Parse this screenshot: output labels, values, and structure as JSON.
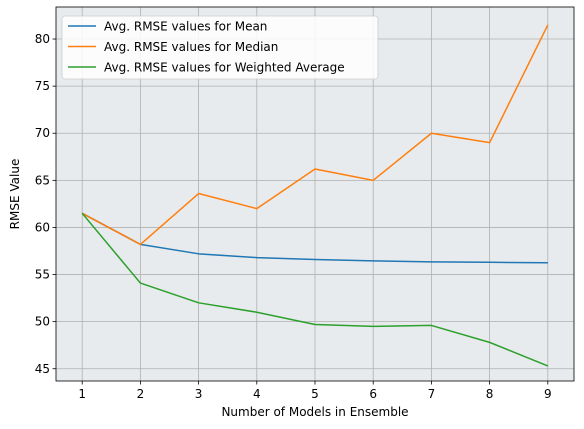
{
  "chart_data": {
    "type": "line",
    "xlabel": "Number of Models in Ensemble",
    "ylabel": "RMSE Value",
    "x": [
      1,
      2,
      3,
      4,
      5,
      6,
      7,
      8,
      9
    ],
    "xlim": [
      0.55,
      9.45
    ],
    "ylim": [
      43.7,
      83.4
    ],
    "xticks": [
      1,
      2,
      3,
      4,
      5,
      6,
      7,
      8,
      9
    ],
    "yticks": [
      45,
      50,
      55,
      60,
      65,
      70,
      75,
      80
    ],
    "grid": true,
    "legend_position": "top-left",
    "plot_background": "#e8ebee",
    "grid_color": "#b0b0b0",
    "series": [
      {
        "name": "Avg. RMSE values for Mean",
        "color": "#1f77b4",
        "values": [
          61.5,
          58.2,
          57.2,
          56.8,
          56.6,
          56.45,
          56.35,
          56.3,
          56.25
        ]
      },
      {
        "name": "Avg. RMSE values for Median",
        "color": "#ff7f0e",
        "values": [
          61.5,
          58.2,
          63.6,
          62.0,
          66.2,
          65.0,
          70.0,
          69.0,
          81.5
        ]
      },
      {
        "name": "Avg. RMSE values for Weighted Average",
        "color": "#2ca02c",
        "values": [
          61.5,
          54.1,
          52.0,
          51.0,
          49.7,
          49.5,
          49.6,
          47.8,
          45.3
        ]
      }
    ]
  }
}
